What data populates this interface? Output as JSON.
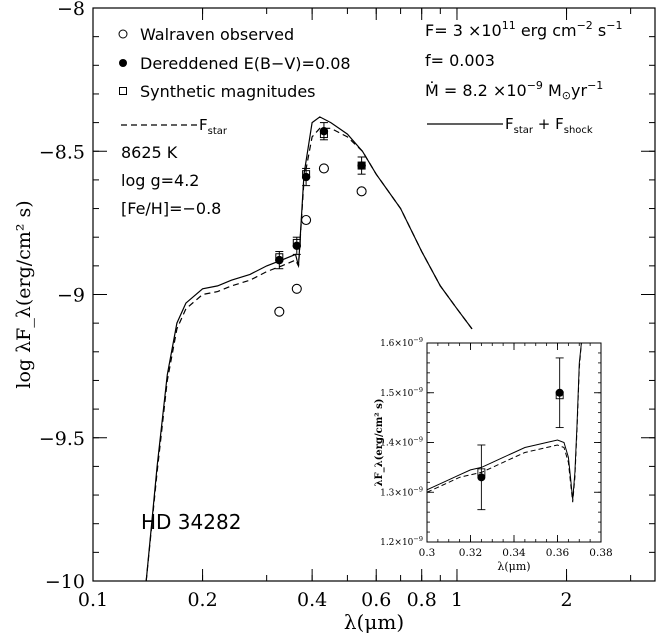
{
  "chart_data": [
    {
      "type": "line",
      "role": "main",
      "x_scale": "log",
      "xlabel": "λ(μm)",
      "ylabel": "log λF_λ(erg/cm² s)",
      "xlim": [
        0.1,
        3.5
      ],
      "ylim": [
        -10,
        -8
      ],
      "xticks": [
        0.1,
        0.2,
        0.4,
        0.6,
        0.8,
        1,
        2
      ],
      "xtick_labels": [
        "0.1",
        "0.2",
        "0.4",
        "0.6",
        "0.8",
        "1",
        "2"
      ],
      "yticks": [
        -10,
        -9.5,
        -9,
        -8.5,
        -8
      ],
      "ytick_labels": [
        "−10",
        "−9.5",
        "−9",
        "−8.5",
        "−8"
      ],
      "object_label": "HD 34282",
      "legend": {
        "points": [
          {
            "marker": "open-circle",
            "label": "Walraven observed"
          },
          {
            "marker": "filled-circle",
            "label": "Dereddened E(B−V)=0.08"
          },
          {
            "marker": "open-square",
            "label": "Synthetic magnitudes"
          }
        ],
        "lines": [
          {
            "style": "dashed",
            "label_main": "F",
            "label_sub": "star"
          },
          {
            "style": "solid",
            "label_main": "F",
            "label_sub": "star",
            "label_mid": " + F",
            "label_sub2": "shock"
          }
        ]
      },
      "params_left": [
        "8625 K",
        "log g=4.2",
        "[Fe/H]=−0.8"
      ],
      "params_right": {
        "F_line": {
          "prefix": "F= 3 ×10",
          "exp": "11",
          "suffix": " erg cm",
          "exp2": "−2",
          "suffix2": " s",
          "exp3": "−1"
        },
        "f_line": "f= 0.003",
        "mdot_line": {
          "prefix": "Ṁ = 8.2 ×10",
          "exp": "−9",
          "suffix": " M",
          "sub": "⊙",
          "suffix2": "yr",
          "exp2": "−1"
        }
      },
      "series": [
        {
          "name": "F_star",
          "style": "dashed",
          "x": [
            0.14,
            0.15,
            0.16,
            0.17,
            0.18,
            0.2,
            0.22,
            0.24,
            0.27,
            0.3,
            0.33,
            0.36,
            0.367,
            0.38,
            0.4,
            0.42,
            0.45,
            0.5,
            0.55,
            0.6,
            0.7,
            0.8,
            0.9,
            1.0,
            1.1
          ],
          "y": [
            -10.0,
            -9.62,
            -9.3,
            -9.12,
            -9.05,
            -9.0,
            -8.99,
            -8.97,
            -8.95,
            -8.92,
            -8.9,
            -8.88,
            -8.9,
            -8.6,
            -8.45,
            -8.42,
            -8.42,
            -8.45,
            -8.5,
            -8.58,
            -8.7,
            -8.85,
            -8.97,
            -9.05,
            -9.12
          ]
        },
        {
          "name": "F_star + F_shock",
          "style": "solid",
          "x": [
            0.14,
            0.15,
            0.16,
            0.17,
            0.18,
            0.2,
            0.22,
            0.24,
            0.27,
            0.3,
            0.33,
            0.36,
            0.367,
            0.38,
            0.4,
            0.42,
            0.45,
            0.5,
            0.55,
            0.6,
            0.7,
            0.8,
            0.9,
            1.0,
            1.1
          ],
          "y": [
            -10.0,
            -9.6,
            -9.28,
            -9.1,
            -9.03,
            -8.98,
            -8.97,
            -8.95,
            -8.93,
            -8.9,
            -8.88,
            -8.86,
            -8.9,
            -8.58,
            -8.4,
            -8.38,
            -8.4,
            -8.44,
            -8.5,
            -8.58,
            -8.7,
            -8.85,
            -8.97,
            -9.05,
            -9.12
          ]
        }
      ],
      "points": [
        {
          "name": "Walraven observed",
          "marker": "open-circle",
          "x": [
            0.325,
            0.363,
            0.385,
            0.431,
            0.547
          ],
          "y": [
            -9.06,
            -8.98,
            -8.74,
            -8.56,
            -8.64
          ]
        },
        {
          "name": "Dereddened E(B−V)=0.08",
          "marker": "filled-circle",
          "x": [
            0.325,
            0.363,
            0.385,
            0.431,
            0.547
          ],
          "y": [
            -8.88,
            -8.83,
            -8.59,
            -8.43,
            -8.55
          ],
          "yerr": [
            0.03,
            0.03,
            0.03,
            0.03,
            0.03
          ]
        },
        {
          "name": "Synthetic magnitudes",
          "marker": "open-square",
          "x": [
            0.325,
            0.363,
            0.385,
            0.431,
            0.547
          ],
          "y": [
            -8.87,
            -8.82,
            -8.58,
            -8.44,
            -8.55
          ]
        }
      ]
    },
    {
      "type": "line",
      "role": "inset",
      "xlabel": "λ(μm)",
      "ylabel": "λF_λ(erg/cm² s)",
      "xlim": [
        0.3,
        0.38
      ],
      "ylim": [
        1.2e-09,
        1.6e-09
      ],
      "xticks": [
        0.3,
        0.32,
        0.34,
        0.36,
        0.38
      ],
      "xtick_labels": [
        "0.3",
        "0.32",
        "0.34",
        "0.36",
        "0.38"
      ],
      "yticks": [
        1.2e-09,
        1.3e-09,
        1.4e-09,
        1.5e-09,
        1.6e-09
      ],
      "ytick_labels": [
        {
          "mant": "1.2×10",
          "exp": "−9"
        },
        {
          "mant": "1.3×10",
          "exp": "−9"
        },
        {
          "mant": "1.4×10",
          "exp": "−9"
        },
        {
          "mant": "1.5×10",
          "exp": "−9"
        },
        {
          "mant": "1.6×10",
          "exp": "−9"
        }
      ],
      "series": [
        {
          "name": "F_star",
          "style": "dashed",
          "x": [
            0.3,
            0.305,
            0.31,
            0.315,
            0.32,
            0.325,
            0.33,
            0.335,
            0.34,
            0.345,
            0.35,
            0.355,
            0.36,
            0.363,
            0.365,
            0.366,
            0.367,
            0.368,
            0.369,
            0.37,
            0.371
          ],
          "y": [
            1.3e-09,
            1.31e-09,
            1.32e-09,
            1.33e-09,
            1.335e-09,
            1.34e-09,
            1.35e-09,
            1.36e-09,
            1.37e-09,
            1.38e-09,
            1.385e-09,
            1.39e-09,
            1.395e-09,
            1.39e-09,
            1.36e-09,
            1.32e-09,
            1.28e-09,
            1.33e-09,
            1.43e-09,
            1.55e-09,
            1.6e-09
          ]
        },
        {
          "name": "F_star + F_shock",
          "style": "solid",
          "x": [
            0.3,
            0.305,
            0.31,
            0.315,
            0.32,
            0.325,
            0.33,
            0.335,
            0.34,
            0.345,
            0.35,
            0.355,
            0.36,
            0.363,
            0.365,
            0.366,
            0.367,
            0.368,
            0.369,
            0.37,
            0.371
          ],
          "y": [
            1.305e-09,
            1.315e-09,
            1.325e-09,
            1.335e-09,
            1.345e-09,
            1.35e-09,
            1.36e-09,
            1.37e-09,
            1.38e-09,
            1.39e-09,
            1.395e-09,
            1.4e-09,
            1.405e-09,
            1.4e-09,
            1.37e-09,
            1.33e-09,
            1.285e-09,
            1.34e-09,
            1.44e-09,
            1.56e-09,
            1.6e-09
          ]
        }
      ],
      "points": [
        {
          "name": "Dereddened E(B−V)=0.08",
          "marker": "filled-circle",
          "x": [
            0.325,
            0.361
          ],
          "y": [
            1.33e-09,
            1.5e-09
          ],
          "yerr": [
            6.5e-11,
            7e-11
          ]
        },
        {
          "name": "Synthetic magnitudes",
          "marker": "open-square",
          "x": [
            0.325,
            0.361
          ],
          "y": [
            1.34e-09,
            1.495e-09
          ]
        }
      ]
    }
  ]
}
